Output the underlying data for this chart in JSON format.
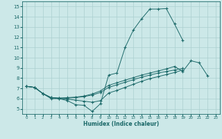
{
  "xlabel": "Humidex (Indice chaleur)",
  "bg_color": "#cce8e8",
  "line_color": "#1a6868",
  "grid_color": "#aacfcf",
  "xlim": [
    -0.5,
    23.5
  ],
  "ylim": [
    4.5,
    15.5
  ],
  "xticks": [
    0,
    1,
    2,
    3,
    4,
    5,
    6,
    7,
    8,
    9,
    10,
    11,
    12,
    13,
    14,
    15,
    16,
    17,
    18,
    19,
    20,
    21,
    22,
    23
  ],
  "yticks": [
    5,
    6,
    7,
    8,
    9,
    10,
    11,
    12,
    13,
    14,
    15
  ],
  "line1_y": [
    7.2,
    7.1,
    6.5,
    6.0,
    6.0,
    5.8,
    5.4,
    5.35,
    4.75,
    5.5,
    8.3,
    8.5,
    11.0,
    12.7,
    13.8,
    14.75,
    14.75,
    14.8,
    13.3,
    11.7,
    null,
    null,
    null,
    null
  ],
  "line2_y": [
    7.2,
    7.1,
    6.5,
    6.1,
    6.05,
    6.1,
    6.15,
    6.25,
    6.45,
    6.75,
    7.3,
    7.55,
    7.8,
    8.05,
    8.3,
    8.5,
    8.7,
    8.9,
    9.15,
    8.65,
    9.7,
    9.5,
    8.25,
    null
  ],
  "line3_y": [
    7.2,
    7.1,
    6.5,
    6.1,
    6.05,
    6.05,
    6.1,
    6.2,
    6.35,
    6.6,
    7.1,
    7.35,
    7.6,
    7.85,
    8.1,
    8.3,
    8.5,
    8.65,
    8.8,
    8.95,
    null,
    null,
    null,
    null
  ],
  "line4_y": [
    7.2,
    7.1,
    6.5,
    6.1,
    6.0,
    5.95,
    5.85,
    5.75,
    5.65,
    5.8,
    6.55,
    6.8,
    7.1,
    7.4,
    7.7,
    7.95,
    8.15,
    8.35,
    8.55,
    8.8,
    null,
    null,
    null,
    null
  ]
}
